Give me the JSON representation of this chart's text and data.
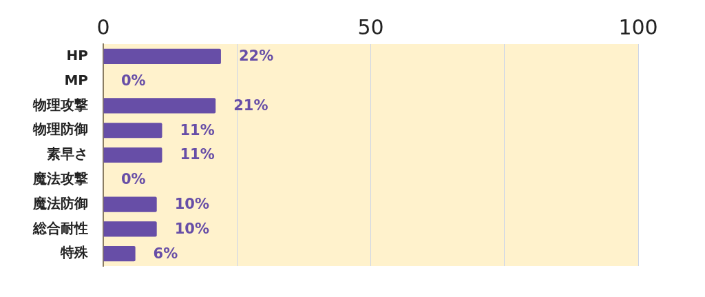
{
  "chart_data": {
    "type": "bar",
    "orientation": "horizontal",
    "categories": [
      "HP",
      "MP",
      "物理攻撃",
      "物理防御",
      "素早さ",
      "魔法攻撃",
      "魔法防御",
      "総合耐性",
      "特殊"
    ],
    "values": [
      22,
      0,
      21,
      11,
      11,
      0,
      10,
      10,
      6
    ],
    "color": "#674ea7",
    "value_labels": [
      "22%",
      "0%",
      "21%",
      "11%",
      "11%",
      "0%",
      "10%",
      "10%",
      "6%"
    ],
    "xlim": [
      0,
      100
    ],
    "xticks": [
      0,
      {
        "value": 25,
        "label": null
      },
      50,
      {
        "value": 75,
        "label": null
      },
      100
    ],
    "grid": "x"
  }
}
